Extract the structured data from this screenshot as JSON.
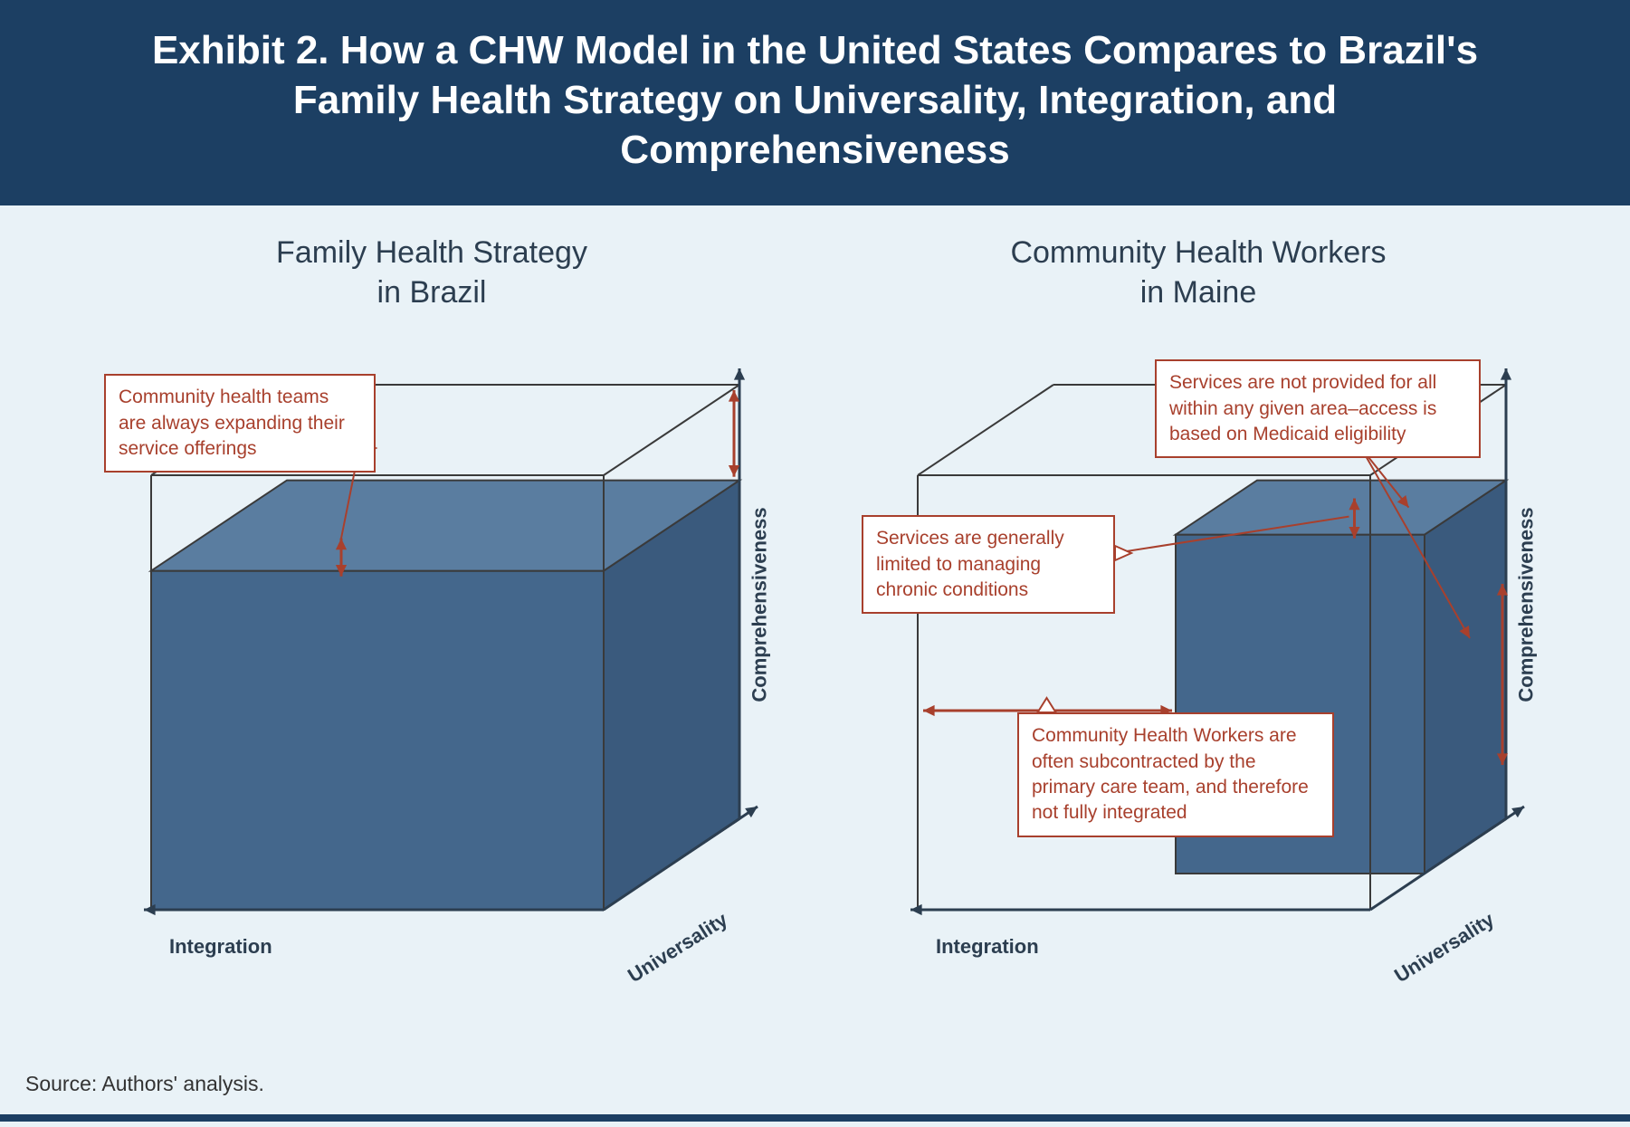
{
  "colors": {
    "title_bg": "#1c3f63",
    "page_bg": "#e9f2f7",
    "cube_fill": "#44678c",
    "cube_fill_light": "#5a7da0",
    "cube_fill_dark": "#3a5a7d",
    "wire": "#3a3a3a",
    "axis": "#2c3e50",
    "callout_border": "#a8402d",
    "callout_text": "#a8402d",
    "subtitle_text": "#2c3e50",
    "footer_bar": "#1c3f63",
    "source_text": "#333333"
  },
  "title": "Exhibit 2. How a CHW Model in the United States Compares to Brazil's Family Health Strategy on Universality, Integration, and Comprehensiveness",
  "title_fontsize": 44,
  "panel_title_fontsize": 34,
  "axis_label_fontsize": 22,
  "callout_fontsize": 21,
  "source_fontsize": 23,
  "axes": {
    "integration": "Integration",
    "universality": "Universality",
    "comprehensiveness": "Comprehensiveness"
  },
  "left": {
    "title": "Family Health Strategy\nin Brazil",
    "fill_fraction": {
      "integration": 1.0,
      "universality": 1.0,
      "comprehensiveness": 0.78
    },
    "callouts": {
      "expanding": "Community health teams are always expanding their service offerings"
    }
  },
  "right": {
    "title": "Community Health Workers\nin Maine",
    "fill_fraction": {
      "integration": 0.55,
      "universality": 0.6,
      "comprehensiveness": 0.78
    },
    "callouts": {
      "access": "Services are not provided for all within any given area–access is based on Medicaid eligibility",
      "chronic": "Services are generally limited to managing chronic conditions",
      "subcontracted": "Community Health Workers are often subcontracted by the primary care team, and therefore not fully integrated"
    }
  },
  "source": "Source: Authors' analysis."
}
